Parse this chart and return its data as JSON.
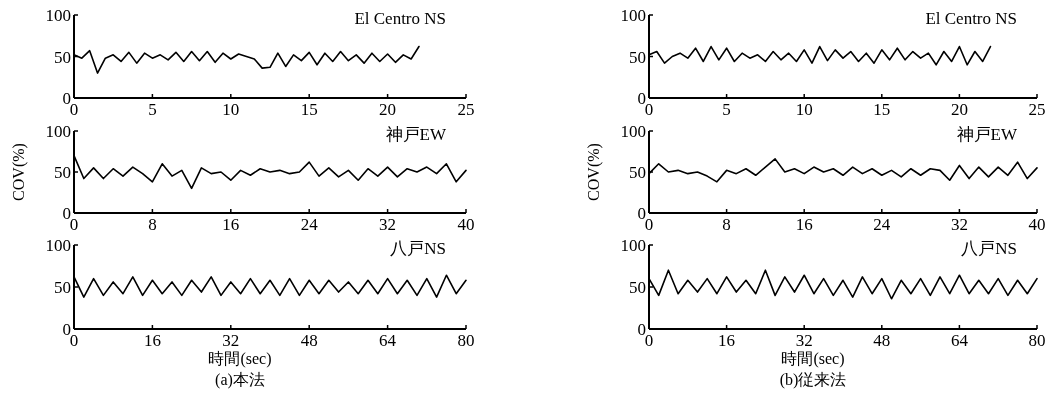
{
  "chart_data": [
    {
      "type": "line",
      "title": "El Centro NS",
      "xlim": [
        0,
        25
      ],
      "xticks": [
        0,
        5,
        10,
        15,
        20,
        25
      ],
      "ylim": [
        0,
        100
      ],
      "yticks": [
        0,
        50,
        100
      ],
      "series": [
        {
          "color": "#000000",
          "x": [
            0,
            0.5,
            1,
            1.5,
            2,
            2.5,
            3,
            3.5,
            4,
            4.5,
            5,
            5.5,
            6,
            6.5,
            7,
            7.5,
            8,
            8.5,
            9,
            9.5,
            10,
            10.5,
            11,
            11.5,
            12,
            12.5,
            13,
            13.5,
            14,
            14.5,
            15,
            15.5,
            16,
            16.5,
            17,
            17.5,
            18,
            18.5,
            19,
            19.5,
            20,
            20.5,
            21,
            21.5,
            22
          ],
          "values": [
            52,
            48,
            57,
            30,
            48,
            52,
            44,
            55,
            42,
            54,
            48,
            52,
            46,
            55,
            44,
            56,
            45,
            56,
            43,
            54,
            47,
            53,
            50,
            47,
            36,
            37,
            54,
            38,
            52,
            45,
            55,
            40,
            54,
            44,
            56,
            45,
            52,
            42,
            54,
            44,
            53,
            43,
            52,
            47,
            62
          ]
        }
      ]
    },
    {
      "type": "line",
      "title": "El Centro NS",
      "xlim": [
        0,
        25
      ],
      "xticks": [
        0,
        5,
        10,
        15,
        20,
        25
      ],
      "ylim": [
        0,
        100
      ],
      "yticks": [
        0,
        50,
        100
      ],
      "series": [
        {
          "color": "#000000",
          "x": [
            0,
            0.5,
            1,
            1.5,
            2,
            2.5,
            3,
            3.5,
            4,
            4.5,
            5,
            5.5,
            6,
            6.5,
            7,
            7.5,
            8,
            8.5,
            9,
            9.5,
            10,
            10.5,
            11,
            11.5,
            12,
            12.5,
            13,
            13.5,
            14,
            14.5,
            15,
            15.5,
            16,
            16.5,
            17,
            17.5,
            18,
            18.5,
            19,
            19.5,
            20,
            20.5,
            21,
            21.5,
            22
          ],
          "values": [
            52,
            56,
            42,
            50,
            54,
            48,
            60,
            44,
            62,
            46,
            60,
            44,
            54,
            48,
            52,
            44,
            56,
            46,
            54,
            44,
            58,
            42,
            62,
            45,
            58,
            48,
            56,
            44,
            54,
            42,
            58,
            46,
            60,
            46,
            56,
            48,
            54,
            40,
            56,
            44,
            62,
            40,
            56,
            44,
            62
          ]
        }
      ]
    },
    {
      "type": "line",
      "title": "神戸EW",
      "ylabel": "COV(%)",
      "xlim": [
        0,
        40
      ],
      "xticks": [
        0,
        8,
        16,
        24,
        32,
        40
      ],
      "ylim": [
        0,
        100
      ],
      "yticks": [
        0,
        50,
        100
      ],
      "series": [
        {
          "color": "#000000",
          "x": [
            0,
            1,
            2,
            3,
            4,
            5,
            6,
            7,
            8,
            9,
            10,
            11,
            12,
            13,
            14,
            15,
            16,
            17,
            18,
            19,
            20,
            21,
            22,
            23,
            24,
            25,
            26,
            27,
            28,
            29,
            30,
            31,
            32,
            33,
            34,
            35,
            36,
            37,
            38,
            39,
            40
          ],
          "values": [
            70,
            42,
            55,
            42,
            54,
            45,
            56,
            48,
            38,
            60,
            45,
            52,
            30,
            55,
            48,
            50,
            40,
            52,
            46,
            54,
            50,
            52,
            48,
            50,
            62,
            45,
            55,
            44,
            52,
            40,
            54,
            45,
            56,
            44,
            54,
            50,
            56,
            48,
            60,
            38,
            52
          ]
        }
      ]
    },
    {
      "type": "line",
      "title": "神戸EW",
      "ylabel": "COV(%)",
      "xlim": [
        0,
        40
      ],
      "xticks": [
        0,
        8,
        16,
        24,
        32,
        40
      ],
      "ylim": [
        0,
        100
      ],
      "yticks": [
        0,
        50,
        100
      ],
      "series": [
        {
          "color": "#000000",
          "x": [
            0,
            1,
            2,
            3,
            4,
            5,
            6,
            7,
            8,
            9,
            10,
            11,
            12,
            13,
            14,
            15,
            16,
            17,
            18,
            19,
            20,
            21,
            22,
            23,
            24,
            25,
            26,
            27,
            28,
            29,
            30,
            31,
            32,
            33,
            34,
            35,
            36,
            37,
            38,
            39,
            40
          ],
          "values": [
            48,
            60,
            50,
            52,
            48,
            50,
            45,
            38,
            52,
            48,
            54,
            46,
            56,
            66,
            50,
            54,
            48,
            56,
            50,
            54,
            46,
            56,
            48,
            54,
            46,
            52,
            44,
            54,
            46,
            54,
            52,
            40,
            58,
            42,
            56,
            44,
            56,
            46,
            62,
            42,
            55
          ]
        }
      ]
    },
    {
      "type": "line",
      "title": "八戸NS",
      "xlabel": "時間(sec)",
      "annotations": [
        "(a)本法"
      ],
      "xlim": [
        0,
        80
      ],
      "xticks": [
        0,
        16,
        32,
        48,
        64,
        80
      ],
      "ylim": [
        0,
        100
      ],
      "yticks": [
        0,
        50,
        100
      ],
      "series": [
        {
          "color": "#000000",
          "x": [
            0,
            2,
            4,
            6,
            8,
            10,
            12,
            14,
            16,
            18,
            20,
            22,
            24,
            26,
            28,
            30,
            32,
            34,
            36,
            38,
            40,
            42,
            44,
            46,
            48,
            50,
            52,
            54,
            56,
            58,
            60,
            62,
            64,
            66,
            68,
            70,
            72,
            74,
            76,
            78,
            80
          ],
          "values": [
            62,
            38,
            60,
            40,
            56,
            42,
            62,
            40,
            58,
            42,
            56,
            40,
            58,
            44,
            62,
            40,
            56,
            42,
            60,
            42,
            58,
            40,
            60,
            40,
            58,
            42,
            58,
            44,
            56,
            42,
            58,
            42,
            60,
            42,
            58,
            40,
            60,
            38,
            64,
            42,
            58
          ]
        }
      ]
    },
    {
      "type": "line",
      "title": "八戸NS",
      "xlabel": "時間(sec)",
      "annotations": [
        "(b)従来法"
      ],
      "xlim": [
        0,
        80
      ],
      "xticks": [
        0,
        16,
        32,
        48,
        64,
        80
      ],
      "ylim": [
        0,
        100
      ],
      "yticks": [
        0,
        50,
        100
      ],
      "series": [
        {
          "color": "#000000",
          "x": [
            0,
            2,
            4,
            6,
            8,
            10,
            12,
            14,
            16,
            18,
            20,
            22,
            24,
            26,
            28,
            30,
            32,
            34,
            36,
            38,
            40,
            42,
            44,
            46,
            48,
            50,
            52,
            54,
            56,
            58,
            60,
            62,
            64,
            66,
            68,
            70,
            72,
            74,
            76,
            78,
            80
          ],
          "values": [
            60,
            40,
            70,
            42,
            58,
            44,
            60,
            42,
            62,
            44,
            58,
            42,
            70,
            40,
            62,
            44,
            64,
            42,
            60,
            40,
            58,
            38,
            62,
            42,
            60,
            36,
            58,
            42,
            60,
            40,
            62,
            42,
            64,
            42,
            58,
            42,
            60,
            40,
            58,
            42,
            60
          ]
        }
      ]
    }
  ]
}
